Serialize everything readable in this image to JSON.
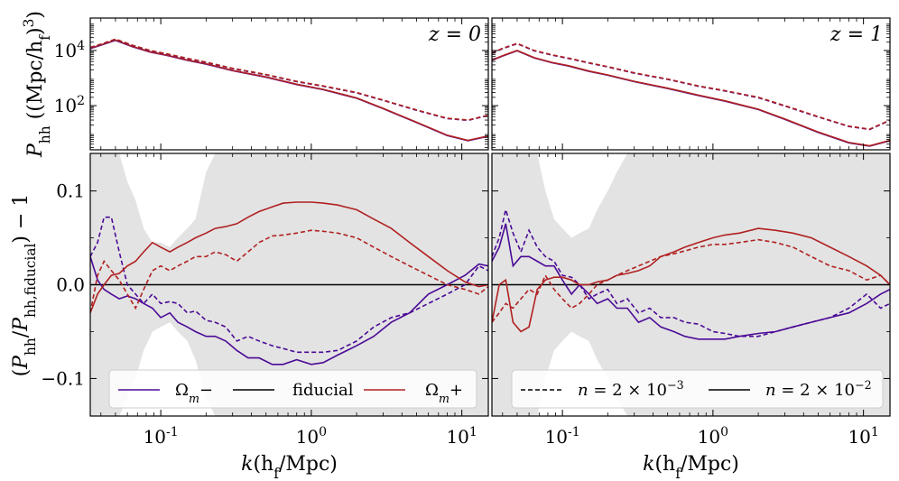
{
  "chart_data": {
    "type": "line",
    "x_axis": {
      "label": "k(h_f/Mpc)",
      "scale": "log",
      "xlim": [
        0.034,
        15
      ],
      "tick_labels": [
        "10^-1",
        "10^0",
        "10^1"
      ]
    },
    "colors": {
      "omega_minus": "#4b0a96",
      "fiducial": "#000000",
      "omega_plus": "#b02121",
      "band": "#e3e3e3"
    },
    "top_row": {
      "ylabel": "P_hh((Mpc/h_f)^3)",
      "scale": "log",
      "ylim": [
        2.5,
        150000
      ],
      "tick_labels": [
        "10^4",
        "10^2"
      ],
      "panels": [
        {
          "label": "z = 0",
          "x": [
            0.034,
            0.04,
            0.05,
            0.065,
            0.085,
            0.11,
            0.15,
            0.2,
            0.3,
            0.5,
            0.8,
            1.2,
            2,
            3,
            5,
            8,
            11,
            15
          ],
          "series": [
            {
              "style": "solid",
              "values": [
                12000,
                16000,
                24000,
                14000,
                9000,
                6800,
                4500,
                3300,
                1900,
                1100,
                600,
                390,
                190,
                80,
                25,
                8.5,
                5.5,
                8
              ]
            },
            {
              "style": "dashed",
              "values": [
                13000,
                17000,
                26000,
                15500,
                10000,
                7600,
                5200,
                3800,
                2250,
                1350,
                760,
                520,
                300,
                160,
                70,
                35,
                30,
                45
              ]
            }
          ]
        },
        {
          "label": "z = 1",
          "x": [
            0.034,
            0.04,
            0.05,
            0.065,
            0.085,
            0.11,
            0.15,
            0.2,
            0.3,
            0.5,
            0.8,
            1.2,
            2,
            3,
            5,
            8,
            11,
            15
          ],
          "series": [
            {
              "style": "solid",
              "values": [
                4500,
                6500,
                10000,
                5500,
                3700,
                2800,
                1800,
                1300,
                760,
                430,
                240,
                150,
                74,
                33,
                11,
                4.6,
                3.5,
                5.5
              ]
            },
            {
              "style": "dashed",
              "values": [
                8000,
                12000,
                18000,
                10000,
                7000,
                5300,
                3600,
                2600,
                1550,
                920,
                520,
                350,
                200,
                100,
                40,
                18,
                14,
                30
              ]
            }
          ]
        }
      ]
    },
    "bottom_row": {
      "ylabel": "(P_hh/P_hh,fiducial) - 1",
      "ylim": [
        -0.14,
        0.14
      ],
      "tick_labels": [
        "0.1",
        "0.0",
        "-0.1"
      ],
      "panels": [
        {
          "x": [
            0.034,
            0.038,
            0.042,
            0.047,
            0.053,
            0.06,
            0.068,
            0.077,
            0.088,
            0.1,
            0.115,
            0.13,
            0.15,
            0.17,
            0.2,
            0.23,
            0.27,
            0.32,
            0.38,
            0.45,
            0.55,
            0.65,
            0.8,
            1.0,
            1.2,
            1.5,
            2.0,
            2.6,
            3.4,
            4.5,
            6.0,
            8.0,
            10.5,
            13.0,
            15.0
          ],
          "band_upper": [
            0.14,
            0.14,
            0.14,
            0.14,
            0.14,
            0.11,
            0.09,
            0.06,
            0.045,
            0.045,
            0.04,
            0.05,
            0.06,
            0.07,
            0.12,
            0.14,
            0.14,
            0.14,
            0.14,
            0.14,
            0.14,
            0.14,
            0.14,
            0.14,
            0.14,
            0.14,
            0.14,
            0.14,
            0.14,
            0.14,
            0.14,
            0.14,
            0.14,
            0.14,
            0.14
          ],
          "band_lower": [
            -0.14,
            -0.14,
            -0.14,
            -0.14,
            -0.14,
            -0.12,
            -0.1,
            -0.07,
            -0.05,
            -0.045,
            -0.04,
            -0.05,
            -0.06,
            -0.08,
            -0.12,
            -0.14,
            -0.14,
            -0.14,
            -0.14,
            -0.14,
            -0.14,
            -0.14,
            -0.14,
            -0.14,
            -0.14,
            -0.14,
            -0.14,
            -0.14,
            -0.14,
            -0.14,
            -0.14,
            -0.14,
            -0.14,
            -0.14,
            -0.14
          ],
          "band_inner_upper": [
            0.04,
            0.04,
            0.035,
            0.03,
            0.025,
            0.025,
            0.025,
            0.025,
            0.025,
            0.02,
            0.02,
            0.025,
            0.03,
            0.035,
            0.045,
            0.05,
            0.05,
            0.05,
            0.048,
            0.048,
            0.048,
            0.045,
            0.045,
            0.045,
            0.045,
            0.045,
            0.04,
            0.035,
            0.03,
            0.03,
            0.05,
            0.08,
            0.1,
            0.11,
            0.09
          ],
          "band_inner_lower": [
            -0.04,
            -0.04,
            -0.035,
            -0.03,
            -0.025,
            -0.025,
            -0.025,
            -0.025,
            -0.025,
            -0.02,
            -0.02,
            -0.025,
            -0.03,
            -0.035,
            -0.045,
            -0.05,
            -0.05,
            -0.05,
            -0.048,
            -0.048,
            -0.048,
            -0.045,
            -0.045,
            -0.045,
            -0.045,
            -0.045,
            -0.04,
            -0.035,
            -0.03,
            -0.03,
            -0.05,
            -0.08,
            -0.1,
            -0.11,
            -0.09
          ],
          "series": [
            {
              "color_key": "omega_minus",
              "style": "solid",
              "values": [
                0.03,
                0.005,
                -0.005,
                -0.01,
                -0.015,
                -0.012,
                -0.015,
                -0.02,
                -0.025,
                -0.035,
                -0.03,
                -0.04,
                -0.045,
                -0.05,
                -0.055,
                -0.055,
                -0.06,
                -0.07,
                -0.078,
                -0.078,
                -0.085,
                -0.085,
                -0.08,
                -0.085,
                -0.083,
                -0.075,
                -0.065,
                -0.055,
                -0.04,
                -0.03,
                -0.01,
                0.0,
                0.01,
                0.022,
                0.02
              ]
            },
            {
              "color_key": "omega_minus",
              "style": "dashed",
              "values": [
                0.03,
                0.045,
                0.072,
                0.072,
                0.035,
                0.0,
                -0.01,
                -0.02,
                -0.01,
                -0.02,
                -0.018,
                -0.02,
                -0.03,
                -0.028,
                -0.038,
                -0.04,
                -0.045,
                -0.06,
                -0.055,
                -0.06,
                -0.065,
                -0.068,
                -0.072,
                -0.072,
                -0.072,
                -0.07,
                -0.06,
                -0.045,
                -0.035,
                -0.03,
                -0.02,
                -0.01,
                0.0,
                0.02,
                0.015
              ]
            },
            {
              "color_key": "omega_plus",
              "style": "solid",
              "values": [
                -0.03,
                -0.01,
                0.0,
                0.01,
                0.012,
                0.02,
                0.025,
                0.035,
                0.045,
                0.04,
                0.035,
                0.04,
                0.045,
                0.05,
                0.055,
                0.06,
                0.062,
                0.065,
                0.072,
                0.078,
                0.083,
                0.087,
                0.088,
                0.088,
                0.087,
                0.085,
                0.08,
                0.07,
                0.06,
                0.045,
                0.03,
                0.015,
                0.003,
                -0.002,
                0.0
              ]
            },
            {
              "color_key": "omega_plus",
              "style": "dashed",
              "values": [
                -0.03,
                0.01,
                0.025,
                0.015,
                0.005,
                -0.01,
                -0.025,
                -0.005,
                0.015,
                0.02,
                0.015,
                0.02,
                0.025,
                0.03,
                0.03,
                0.035,
                0.032,
                0.025,
                0.035,
                0.045,
                0.052,
                0.053,
                0.055,
                0.058,
                0.057,
                0.055,
                0.05,
                0.04,
                0.03,
                0.02,
                0.01,
                0.0,
                -0.005,
                -0.01,
                -0.002
              ]
            }
          ]
        },
        {
          "x": [
            0.034,
            0.038,
            0.042,
            0.047,
            0.053,
            0.06,
            0.068,
            0.077,
            0.088,
            0.1,
            0.115,
            0.13,
            0.15,
            0.17,
            0.2,
            0.23,
            0.27,
            0.32,
            0.38,
            0.45,
            0.55,
            0.65,
            0.8,
            1.0,
            1.2,
            1.5,
            2.0,
            2.6,
            3.4,
            4.5,
            6.0,
            8.0,
            10.5,
            13.0,
            15.0
          ],
          "band_upper": [
            0.14,
            0.14,
            0.14,
            0.14,
            0.14,
            0.14,
            0.14,
            0.1,
            0.07,
            0.06,
            0.05,
            0.055,
            0.06,
            0.08,
            0.1,
            0.12,
            0.14,
            0.14,
            0.14,
            0.14,
            0.14,
            0.14,
            0.14,
            0.14,
            0.14,
            0.14,
            0.14,
            0.14,
            0.14,
            0.14,
            0.14,
            0.14,
            0.14,
            0.14,
            0.14
          ],
          "band_lower": [
            -0.14,
            -0.14,
            -0.14,
            -0.14,
            -0.14,
            -0.14,
            -0.14,
            -0.1,
            -0.07,
            -0.06,
            -0.05,
            -0.055,
            -0.06,
            -0.08,
            -0.1,
            -0.12,
            -0.14,
            -0.14,
            -0.14,
            -0.14,
            -0.14,
            -0.14,
            -0.14,
            -0.14,
            -0.14,
            -0.14,
            -0.14,
            -0.14,
            -0.14,
            -0.14,
            -0.14,
            -0.14,
            -0.14,
            -0.14,
            -0.14
          ],
          "band_inner_upper": [
            0.05,
            0.05,
            0.045,
            0.04,
            0.035,
            0.03,
            0.03,
            0.03,
            0.03,
            0.025,
            0.02,
            0.02,
            0.025,
            0.03,
            0.03,
            0.03,
            0.03,
            0.025,
            0.025,
            0.02,
            0.02,
            0.02,
            0.02,
            0.02,
            0.02,
            0.02,
            0.02,
            0.025,
            0.03,
            0.035,
            0.045,
            0.06,
            0.07,
            0.06,
            0.05
          ],
          "band_inner_lower": [
            -0.05,
            -0.05,
            -0.045,
            -0.04,
            -0.035,
            -0.03,
            -0.03,
            -0.03,
            -0.03,
            -0.025,
            -0.02,
            -0.02,
            -0.025,
            -0.03,
            -0.03,
            -0.03,
            -0.03,
            -0.025,
            -0.025,
            -0.02,
            -0.02,
            -0.02,
            -0.02,
            -0.02,
            -0.02,
            -0.02,
            -0.02,
            -0.025,
            -0.03,
            -0.035,
            -0.045,
            -0.06,
            -0.07,
            -0.06,
            -0.05
          ],
          "series": [
            {
              "color_key": "omega_minus",
              "style": "solid",
              "values": [
                0.025,
                0.04,
                0.065,
                0.02,
                0.03,
                0.03,
                0.025,
                0.02,
                0.02,
                0.005,
                -0.01,
                0.0,
                -0.01,
                -0.02,
                -0.015,
                -0.025,
                -0.025,
                -0.04,
                -0.035,
                -0.045,
                -0.05,
                -0.055,
                -0.058,
                -0.058,
                -0.058,
                -0.055,
                -0.052,
                -0.05,
                -0.045,
                -0.04,
                -0.035,
                -0.03,
                -0.02,
                -0.01,
                -0.005
              ]
            },
            {
              "color_key": "omega_minus",
              "style": "dashed",
              "values": [
                0.03,
                0.05,
                0.08,
                0.055,
                0.035,
                0.058,
                0.04,
                0.03,
                0.025,
                0.01,
                0.008,
                0.0,
                -0.015,
                -0.01,
                -0.005,
                -0.02,
                -0.015,
                -0.03,
                -0.025,
                -0.035,
                -0.035,
                -0.04,
                -0.042,
                -0.05,
                -0.052,
                -0.055,
                -0.055,
                -0.05,
                -0.045,
                -0.04,
                -0.035,
                -0.025,
                -0.01,
                -0.025,
                -0.02
              ]
            },
            {
              "color_key": "omega_plus",
              "style": "solid",
              "values": [
                -0.04,
                0.0,
                0.005,
                -0.04,
                -0.05,
                -0.045,
                -0.005,
                0.005,
                0.008,
                0.008,
                0.005,
                0.0,
                0.0,
                0.003,
                0.005,
                0.01,
                0.012,
                0.015,
                0.02,
                0.03,
                0.035,
                0.04,
                0.045,
                0.05,
                0.053,
                0.055,
                0.06,
                0.058,
                0.055,
                0.05,
                0.04,
                0.03,
                0.02,
                0.01,
                0.0
              ]
            },
            {
              "color_key": "omega_plus",
              "style": "dashed",
              "values": [
                -0.04,
                -0.03,
                -0.02,
                -0.025,
                -0.015,
                -0.005,
                -0.01,
                0.01,
                -0.005,
                -0.015,
                -0.025,
                -0.02,
                -0.01,
                0.0,
                0.005,
                0.01,
                0.015,
                0.02,
                0.025,
                0.03,
                0.033,
                0.036,
                0.04,
                0.043,
                0.043,
                0.045,
                0.048,
                0.045,
                0.04,
                0.03,
                0.02,
                0.015,
                0.005,
                0.01,
                0.0
              ]
            }
          ]
        }
      ]
    },
    "legend_left": {
      "placement": "lower-left",
      "entries": [
        {
          "label": "Ω_m−",
          "color_key": "omega_minus",
          "style": "solid"
        },
        {
          "label": "fiducial",
          "color_key": "fiducial",
          "style": "solid"
        },
        {
          "label": "Ω_m+",
          "color_key": "omega_plus",
          "style": "solid"
        }
      ]
    },
    "legend_right": {
      "placement": "lower-left",
      "entries": [
        {
          "label": "n = 2 × 10^-3",
          "color_key": "fiducial",
          "style": "dashed"
        },
        {
          "label": "n = 2 × 10^-2",
          "color_key": "fiducial",
          "style": "solid"
        }
      ]
    }
  }
}
